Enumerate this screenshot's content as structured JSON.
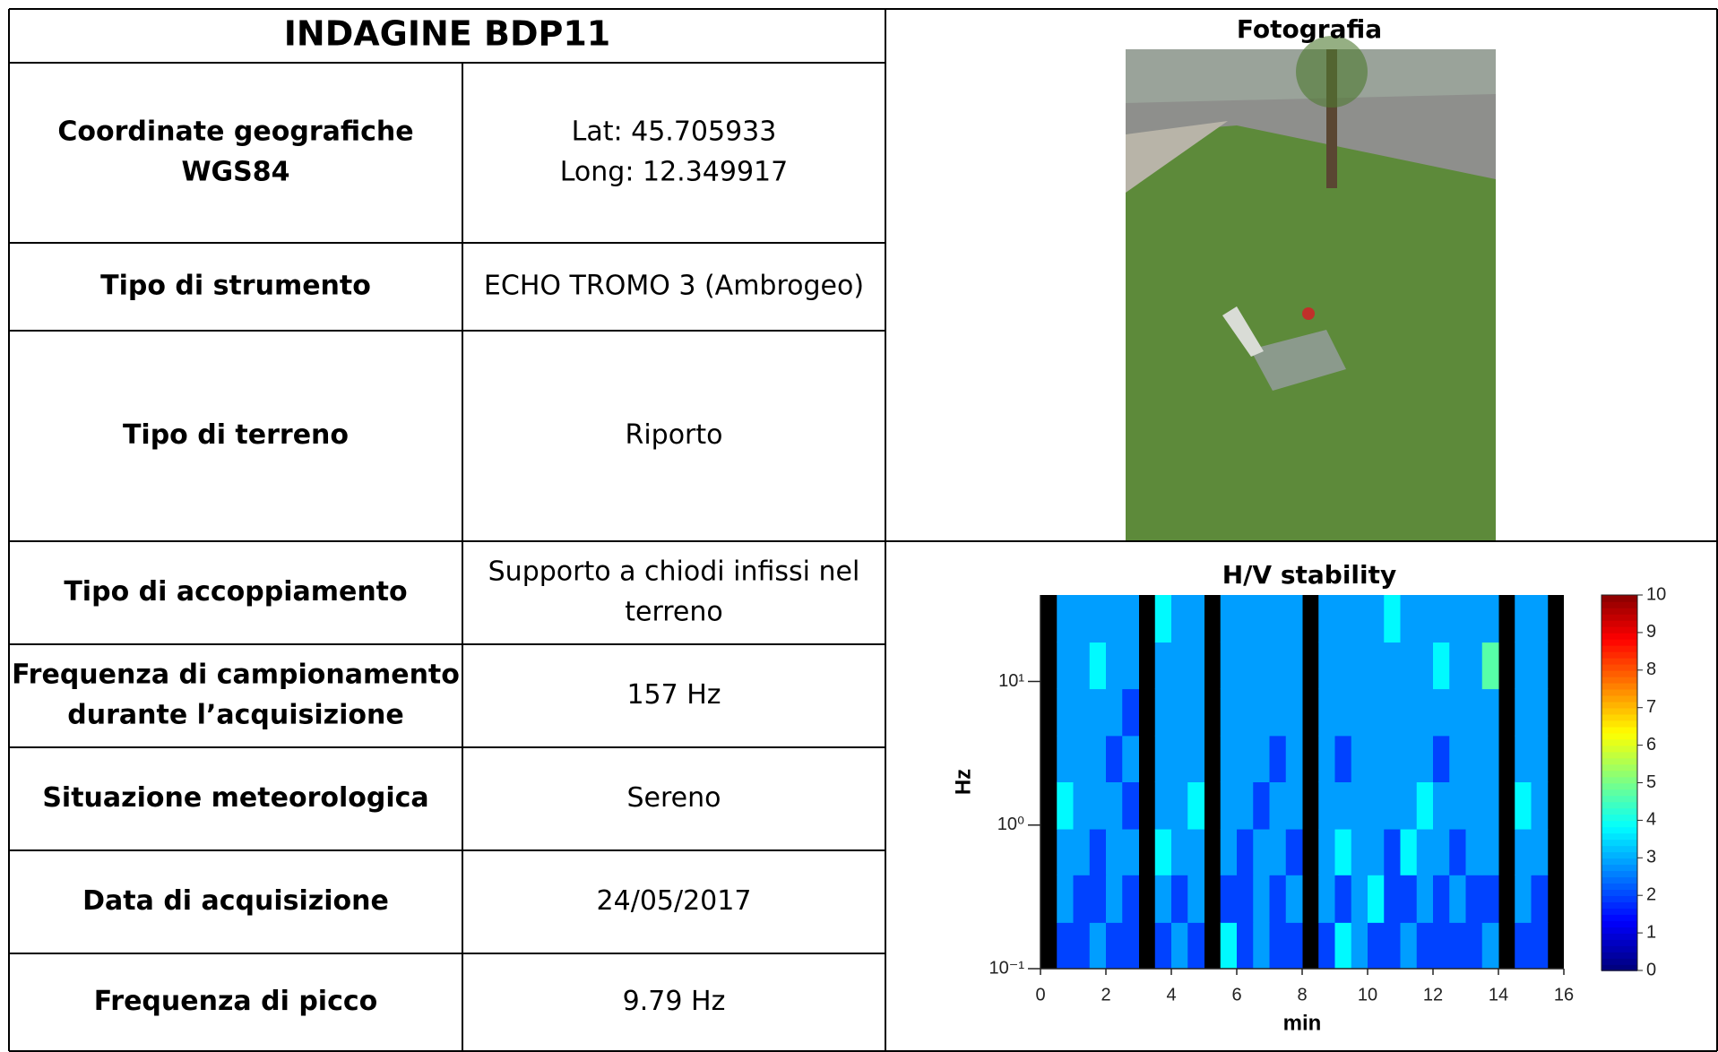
{
  "header": {
    "title": "INDAGINE BDP11"
  },
  "table": {
    "rows": [
      {
        "label": [
          "Coordinate geografiche",
          "WGS84"
        ],
        "value": [
          "Lat: 45.705933",
          "Long: 12.349917"
        ]
      },
      {
        "label": [
          "Tipo di strumento"
        ],
        "value": [
          "ECHO TROMO 3 (Ambrogeo)"
        ]
      },
      {
        "label": [
          "Tipo di terreno"
        ],
        "value": [
          "Riporto"
        ]
      },
      {
        "label": [
          "Tipo di accoppiamento"
        ],
        "value": [
          "Supporto a chiodi infissi nel",
          "terreno"
        ]
      },
      {
        "label": [
          "Frequenza di campionamento",
          "durante l’acquisizione"
        ],
        "value": [
          "157 Hz"
        ]
      },
      {
        "label": [
          "Situazione meteorologica"
        ],
        "value": [
          "Sereno"
        ]
      },
      {
        "label": [
          "Data di acquisizione"
        ],
        "value": [
          "24/05/2017"
        ]
      },
      {
        "label": [
          "Frequenza di picco"
        ],
        "value": [
          "9.79 Hz"
        ]
      }
    ]
  },
  "photo": {
    "title": "Fotografia"
  },
  "chart_data": {
    "type": "heatmap",
    "title": "H/V stability",
    "x_label": "min",
    "y_label": "Hz",
    "xlim": [
      0,
      16
    ],
    "xticks": [
      0,
      2,
      4,
      6,
      8,
      10,
      12,
      14,
      16
    ],
    "ylim": [
      0.1,
      40
    ],
    "log_y": true,
    "yticks": [
      {
        "value": 0.1,
        "label": "10⁻¹"
      },
      {
        "value": 1,
        "label": "10⁰"
      },
      {
        "value": 10,
        "label": "10¹"
      }
    ],
    "colormap": "jet",
    "colorbar": {
      "lim": [
        0,
        10
      ],
      "ticks": [
        0,
        1,
        2,
        3,
        4,
        5,
        6,
        7,
        8,
        9,
        10
      ]
    },
    "x_bins": [
      0,
      0.5,
      1,
      1.5,
      2,
      2.5,
      3,
      3.5,
      4,
      4.5,
      5,
      5.5,
      6,
      6.5,
      7,
      7.5,
      8,
      8.5,
      9,
      9.5,
      10,
      10.5,
      11,
      11.5,
      12,
      12.5,
      13,
      13.5,
      14,
      14.5,
      15,
      15.5,
      16
    ],
    "y_bins": [
      0.1,
      0.21,
      0.45,
      0.94,
      2.0,
      4.2,
      8.9,
      18.8,
      40
    ],
    "values": [
      [
        null,
        1,
        1,
        2,
        1,
        1,
        null,
        1,
        2,
        1,
        null,
        3,
        1,
        2,
        1,
        1,
        null,
        1,
        3,
        2,
        1,
        1,
        2,
        1,
        1,
        1,
        1,
        2,
        null,
        1,
        1,
        null
      ],
      [
        null,
        2,
        1,
        1,
        2,
        1,
        null,
        2,
        1,
        2,
        null,
        1,
        1,
        2,
        1,
        2,
        null,
        2,
        1,
        2,
        3,
        1,
        1,
        2,
        1,
        2,
        1,
        1,
        null,
        2,
        1,
        null
      ],
      [
        null,
        2,
        2,
        1,
        2,
        2,
        null,
        3,
        2,
        2,
        null,
        2,
        1,
        2,
        2,
        1,
        null,
        2,
        3,
        2,
        2,
        1,
        3,
        2,
        2,
        1,
        2,
        2,
        null,
        2,
        2,
        null
      ],
      [
        null,
        3,
        2,
        2,
        2,
        1,
        null,
        2,
        2,
        3,
        null,
        2,
        2,
        1,
        2,
        2,
        null,
        2,
        2,
        2,
        2,
        2,
        2,
        3,
        2,
        2,
        2,
        2,
        null,
        3,
        2,
        null
      ],
      [
        null,
        2,
        2,
        2,
        1,
        2,
        null,
        2,
        2,
        2,
        null,
        2,
        2,
        2,
        1,
        2,
        null,
        2,
        1,
        2,
        2,
        2,
        2,
        2,
        1,
        2,
        2,
        2,
        null,
        2,
        2,
        null
      ],
      [
        null,
        2,
        2,
        2,
        2,
        1,
        null,
        2,
        2,
        2,
        null,
        2,
        2,
        2,
        2,
        2,
        null,
        2,
        2,
        2,
        2,
        2,
        2,
        2,
        2,
        2,
        2,
        2,
        null,
        2,
        2,
        null
      ],
      [
        null,
        2,
        2,
        3,
        2,
        2,
        null,
        2,
        2,
        2,
        null,
        2,
        2,
        2,
        2,
        2,
        null,
        2,
        2,
        2,
        2,
        2,
        2,
        2,
        3,
        2,
        2,
        4,
        null,
        2,
        2,
        null
      ],
      [
        null,
        2,
        2,
        2,
        2,
        2,
        null,
        3,
        2,
        2,
        null,
        2,
        2,
        2,
        2,
        2,
        null,
        2,
        2,
        2,
        2,
        3,
        2,
        2,
        2,
        2,
        2,
        2,
        null,
        2,
        2,
        null
      ]
    ]
  }
}
